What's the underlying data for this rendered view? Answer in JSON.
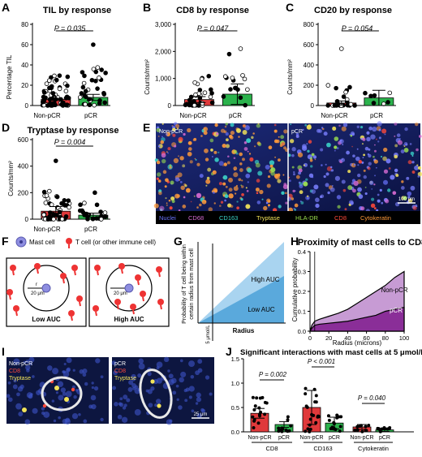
{
  "colors": {
    "nonpcr": "#e0393b",
    "pcr": "#2bb24c",
    "hAUC_low": "#5aa9dc",
    "hAUC_high": "#a9d4f0",
    "pH_nonpcr": "#c79bd4",
    "pH_pcr": "#8a2e98"
  },
  "panels": {
    "A": {
      "letter": "A",
      "title": "TIL by response",
      "ylabel": "Percentage TIL",
      "p": "P = 0.035",
      "yticks": [
        "0",
        "20",
        "40",
        "60",
        "80"
      ]
    },
    "B": {
      "letter": "B",
      "title": "CD8 by response",
      "ylabel": "Counts/mm²",
      "p": "P = 0.047",
      "yticks": [
        "0",
        "1,000",
        "2,000",
        "3,000"
      ]
    },
    "C": {
      "letter": "C",
      "title": "CD20 by response",
      "ylabel": "Counts/mm²",
      "p": "P = 0.054",
      "yticks": [
        "0",
        "200",
        "400",
        "600",
        "800"
      ]
    },
    "D": {
      "letter": "D",
      "title": "Tryptase by response",
      "ylabel": "Counts/mm²",
      "p": "P = 0.004",
      "yticks": [
        "0",
        "200",
        "400",
        "600"
      ]
    },
    "E": {
      "letter": "E",
      "left_label": "Non-pCR",
      "right_label": "pCR",
      "scalebar": "100 μm",
      "legend": [
        {
          "text": "Nuclei",
          "color": "#6b74ff"
        },
        {
          "text": "CD68",
          "color": "#d46ad0"
        },
        {
          "text": "CD163",
          "color": "#3ad3c8"
        },
        {
          "text": "Tryptase",
          "color": "#f2e35a"
        },
        {
          "text": "HLA-DR",
          "color": "#9be04f"
        },
        {
          "text": "CD8",
          "color": "#ff4a3a"
        },
        {
          "text": "Cytokeratin",
          "color": "#ff9a3a"
        }
      ]
    },
    "F": {
      "letter": "F",
      "legend_mast": "Mast cell",
      "legend_t": "T cell (or other immune cell)",
      "radius_r": "r",
      "radius_text": "20 μm",
      "low_label": "Low AUC",
      "high_label": "High AUC"
    },
    "G": {
      "letter": "G",
      "ylabel_1": "Probability of T cell being within",
      "ylabel_2": "certain radius from mast cell",
      "xlabel": "Radius",
      "vline_label": "5 μmol/L",
      "high_label": "High AUC",
      "low_label": "Low AUC"
    },
    "H": {
      "letter": "H",
      "title": "Proximity of mast cells to CD8",
      "ylabel": "Cumulative probability",
      "xlabel": "Radius (microns)",
      "xticks": [
        "0",
        "20",
        "40",
        "60",
        "80",
        "100"
      ],
      "yticks": [
        "0.0",
        "0.1",
        "0.2",
        "0.3",
        "0.4"
      ],
      "series_nonpcr": "Non-pCR",
      "series_pcr": "pCR"
    },
    "I": {
      "letter": "I",
      "left": {
        "line1": "Non-pCR",
        "line2": "CD8",
        "line3": "Tryptase"
      },
      "right": {
        "line1": "pCR",
        "line2": "CD8",
        "line3": "Tryptase"
      },
      "scalebar": "25 μm"
    },
    "J": {
      "letter": "J",
      "title": "Significant interactions with mast cells at 5 μmol/L",
      "yticks": [
        "0.0",
        "0.5",
        "1.0",
        "1.5"
      ],
      "p1": "P = 0.002",
      "p2": "P < 0.001",
      "p3": "P = 0.040",
      "groups": [
        "CD8",
        "CD163",
        "Cytokeratin"
      ],
      "bar_labels": [
        "Non-pCR",
        "pCR",
        "Non-pCR",
        "pCR",
        "Non-pCR",
        "pCR"
      ]
    }
  },
  "group_labels": {
    "nonpcr": "Non-pCR",
    "pcr": "pCR"
  },
  "chart_data": [
    {
      "panel": "A",
      "type": "bar",
      "title": "TIL by response",
      "ylabel": "Percentage TIL",
      "categories": [
        "Non-pCR",
        "pCR"
      ],
      "values": [
        6,
        8
      ],
      "errors": [
        1,
        3
      ],
      "ylim": [
        0,
        80
      ]
    },
    {
      "panel": "B",
      "type": "bar",
      "title": "CD8 by response",
      "ylabel": "Counts/mm²",
      "categories": [
        "Non-pCR",
        "pCR"
      ],
      "values": [
        220,
        420
      ],
      "errors": [
        110,
        380
      ],
      "ylim": [
        0,
        3000
      ]
    },
    {
      "panel": "C",
      "type": "bar",
      "title": "CD20 by response",
      "ylabel": "Counts/mm²",
      "categories": [
        "Non-pCR",
        "pCR"
      ],
      "values": [
        25,
        75
      ],
      "errors": [
        20,
        75
      ],
      "ylim": [
        0,
        800
      ]
    },
    {
      "panel": "D",
      "type": "bar",
      "title": "Tryptase by response",
      "ylabel": "Counts/mm²",
      "categories": [
        "Non-pCR",
        "pCR"
      ],
      "values": [
        60,
        30
      ],
      "errors": [
        35,
        15
      ],
      "ylim": [
        0,
        600
      ]
    },
    {
      "panel": "H",
      "type": "area",
      "title": "Proximity of mast cells to CD8",
      "xlabel": "Radius (microns)",
      "ylabel": "Cumulative probability",
      "x": [
        0,
        2,
        5,
        10,
        20,
        30,
        40,
        50,
        60,
        70,
        80,
        90,
        100
      ],
      "series": [
        {
          "name": "Non-pCR",
          "values": [
            0.0,
            0.03,
            0.05,
            0.06,
            0.075,
            0.09,
            0.11,
            0.14,
            0.17,
            0.2,
            0.23,
            0.27,
            0.3
          ]
        },
        {
          "name": "pCR",
          "values": [
            0.0,
            0.015,
            0.03,
            0.035,
            0.04,
            0.045,
            0.05,
            0.06,
            0.07,
            0.08,
            0.1,
            0.11,
            0.12
          ]
        }
      ],
      "xlim": [
        0,
        100
      ],
      "ylim": [
        0,
        0.4
      ]
    },
    {
      "panel": "J",
      "type": "bar",
      "title": "Significant interactions with mast cells at 5 μmol/L",
      "categories": [
        "CD8 Non-pCR",
        "CD8 pCR",
        "CD163 Non-pCR",
        "CD163 pCR",
        "Cytokeratin Non-pCR",
        "Cytokeratin pCR"
      ],
      "values": [
        0.38,
        0.15,
        0.5,
        0.18,
        0.1,
        0.04
      ],
      "errors": [
        0.1,
        0.06,
        0.35,
        0.12,
        0.05,
        0.03
      ],
      "ylim": [
        0,
        1.5
      ]
    }
  ]
}
